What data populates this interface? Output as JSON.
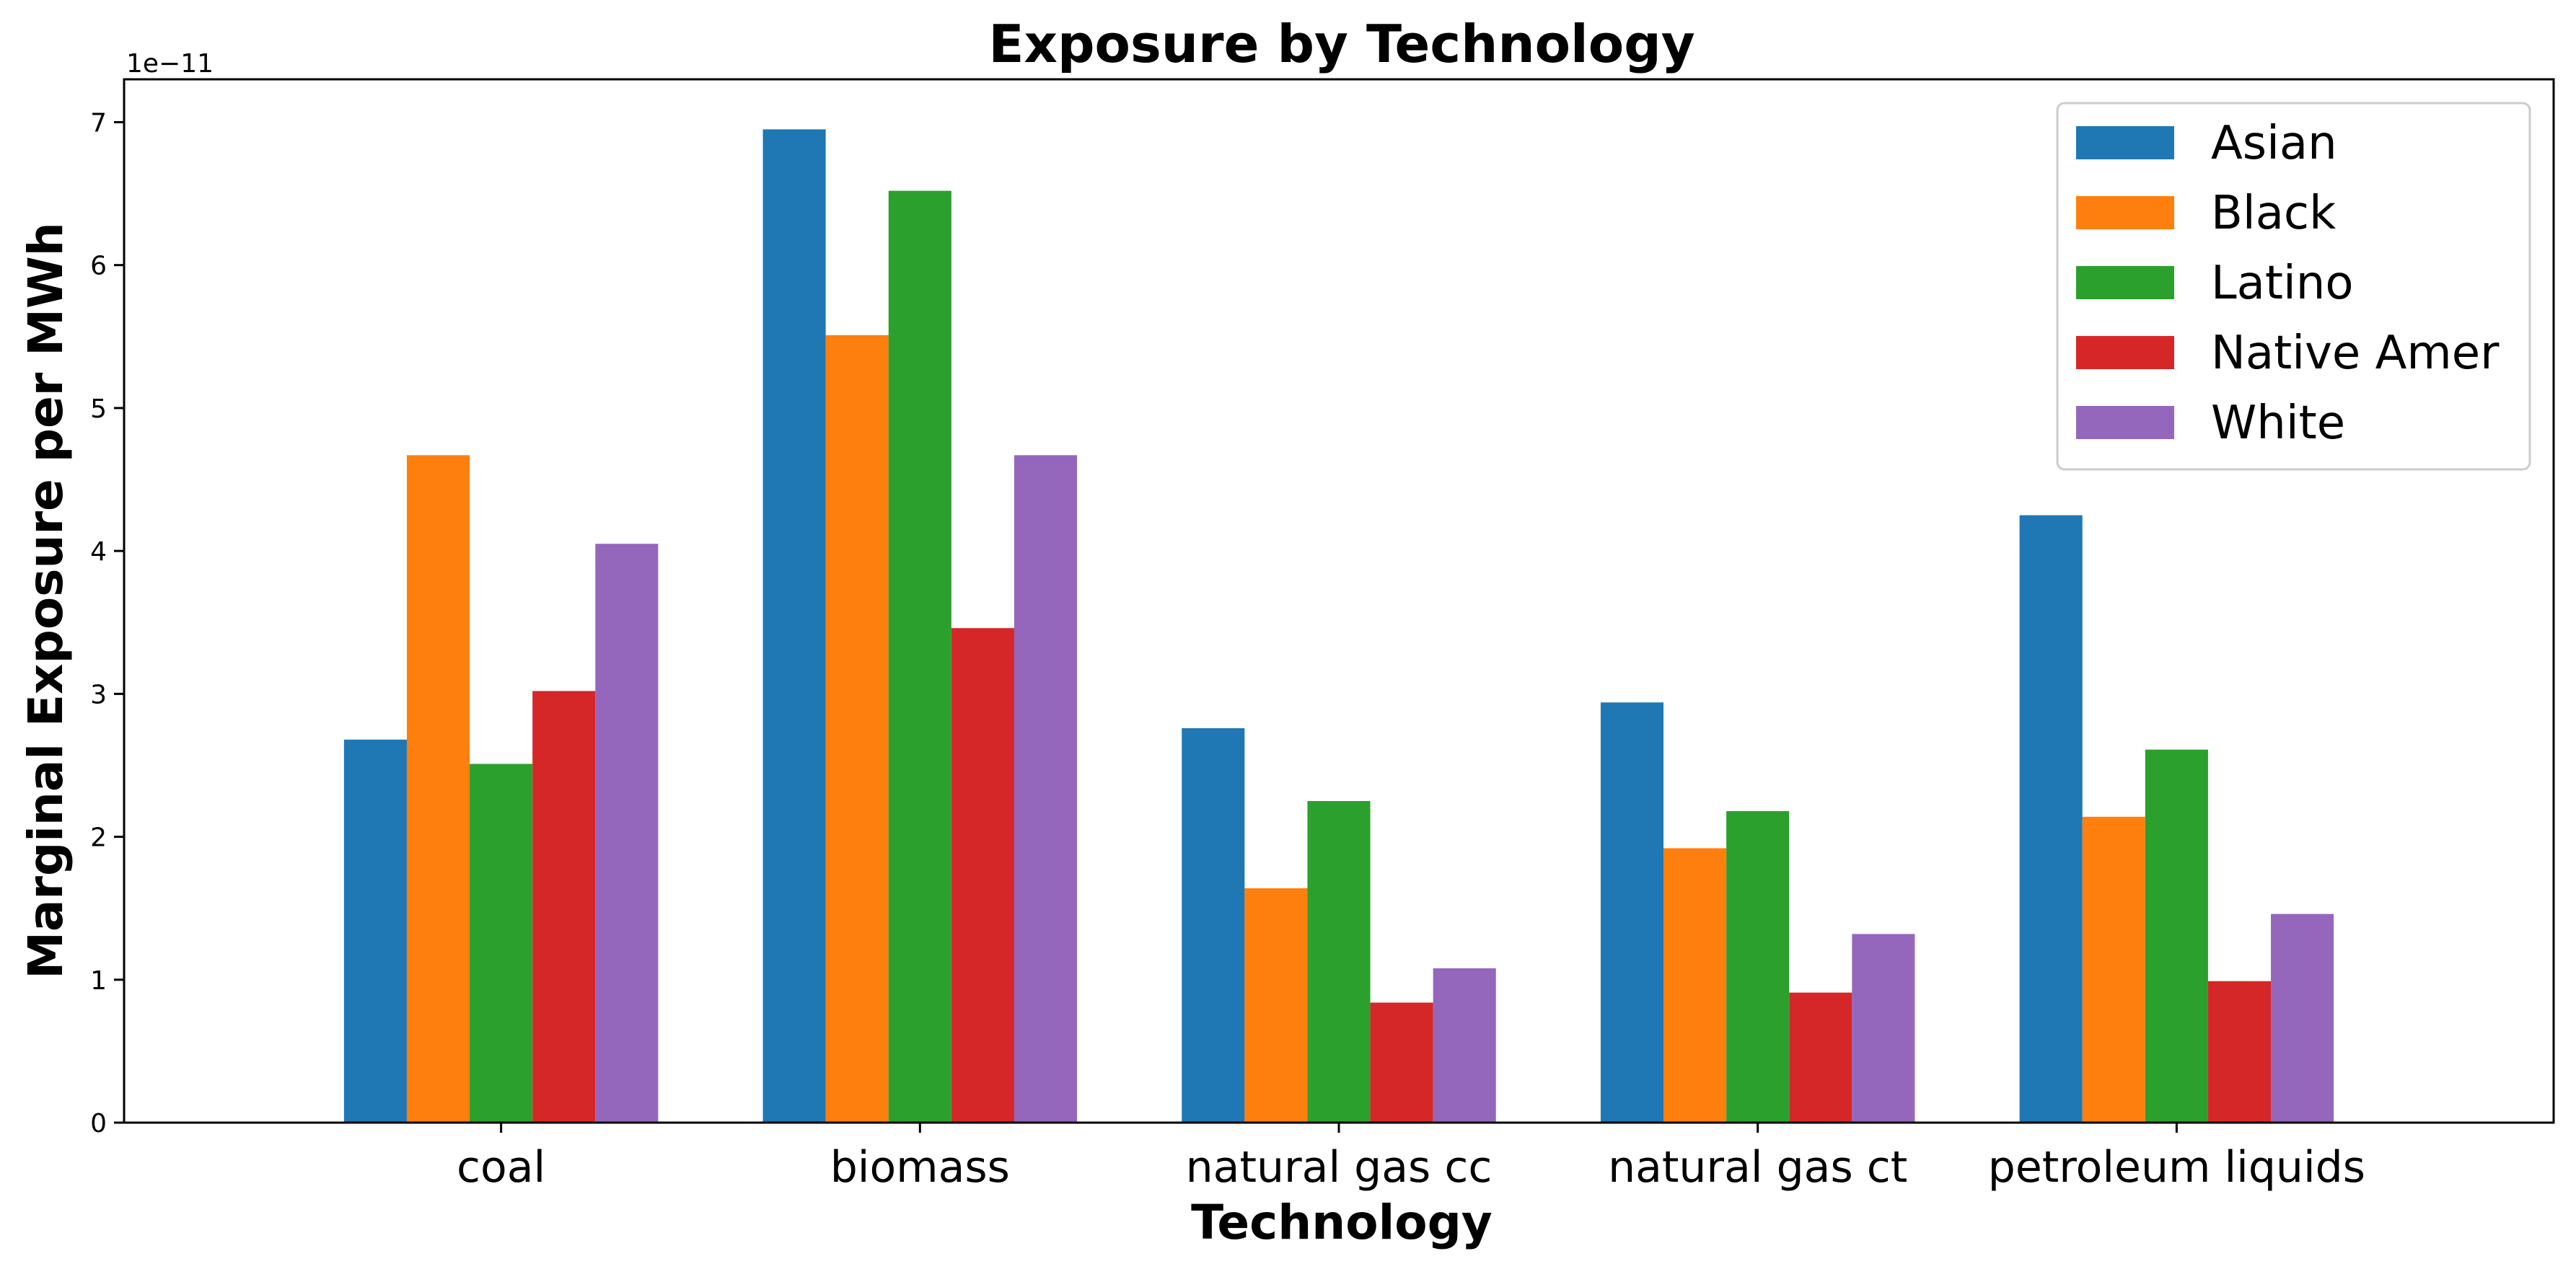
{
  "chart_data": {
    "type": "bar",
    "title": "Exposure by Technology",
    "xlabel": "Technology",
    "ylabel": "Marginal Exposure per MWh",
    "y_offset_label": "1e−11",
    "categories": [
      "coal",
      "biomass",
      "natural gas cc",
      "natural gas ct",
      "petroleum liquids"
    ],
    "series": [
      {
        "name": "Asian",
        "color": "#1f77b4",
        "values": [
          2.68,
          6.95,
          2.76,
          2.94,
          4.25
        ]
      },
      {
        "name": "Black",
        "color": "#ff7f0e",
        "values": [
          4.67,
          5.51,
          1.64,
          1.92,
          2.14
        ]
      },
      {
        "name": "Latino",
        "color": "#2ca02c",
        "values": [
          2.51,
          6.52,
          2.25,
          2.18,
          2.61
        ]
      },
      {
        "name": "Native Amer",
        "color": "#d62728",
        "values": [
          3.02,
          3.46,
          0.84,
          0.91,
          0.99
        ]
      },
      {
        "name": "White",
        "color": "#9467bd",
        "values": [
          4.05,
          4.67,
          1.08,
          1.32,
          1.46
        ]
      }
    ],
    "yticks": [
      "0",
      "1",
      "2",
      "3",
      "4",
      "5",
      "6",
      "7"
    ],
    "ylim": [
      0,
      7.3
    ],
    "legend": "top-right",
    "grid": false
  }
}
